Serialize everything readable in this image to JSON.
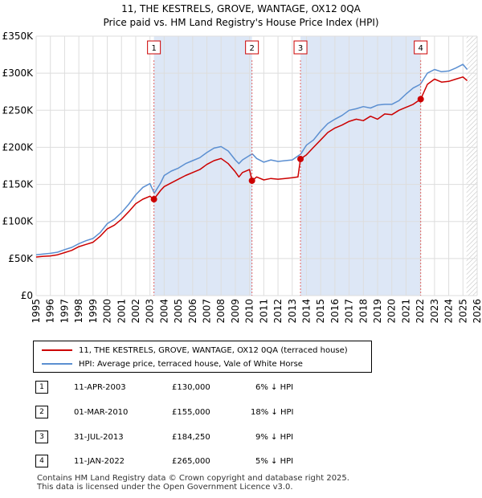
{
  "title_line1": "11, THE KESTRELS, GROVE, WANTAGE, OX12 0QA",
  "title_line2": "Price paid vs. HM Land Registry's House Price Index (HPI)",
  "colors": {
    "price": "#cc0000",
    "hpi": "#5b8fd1",
    "shade": "#dde7f6",
    "marker_line": "#e06666"
  },
  "chart_data": {
    "type": "line",
    "title": "11, THE KESTRELS, GROVE, WANTAGE, OX12 0QA — Price paid vs. HM Land Registry's House Price Index (HPI)",
    "xlabel": "",
    "ylabel": "",
    "xlim": [
      1995,
      2026
    ],
    "ylim": [
      0,
      350000
    ],
    "y_ticks": [
      0,
      50000,
      100000,
      150000,
      200000,
      250000,
      300000,
      350000
    ],
    "y_tick_labels": [
      "£0",
      "£50K",
      "£100K",
      "£150K",
      "£200K",
      "£250K",
      "£300K",
      "£350K"
    ],
    "x_ticks": [
      1995,
      1996,
      1997,
      1998,
      1999,
      2000,
      2001,
      2002,
      2003,
      2004,
      2005,
      2006,
      2007,
      2008,
      2009,
      2010,
      2011,
      2012,
      2013,
      2014,
      2015,
      2016,
      2017,
      2018,
      2019,
      2020,
      2021,
      2022,
      2023,
      2024,
      2025,
      2026
    ],
    "grid": true,
    "series": [
      {
        "name": "HPI: Average price, terraced house, Vale of White Horse",
        "x": [
          1995.0,
          1995.5,
          1996.0,
          1996.5,
          1997.0,
          1997.5,
          1998.0,
          1998.5,
          1999.0,
          1999.5,
          2000.0,
          2000.5,
          2001.0,
          2001.5,
          2002.0,
          2002.5,
          2003.0,
          2003.3,
          2003.75,
          2004.0,
          2004.5,
          2005.0,
          2005.5,
          2006.0,
          2006.5,
          2007.0,
          2007.5,
          2008.0,
          2008.5,
          2009.0,
          2009.25,
          2009.5,
          2010.0,
          2010.2,
          2010.5,
          2011.0,
          2011.5,
          2012.0,
          2012.5,
          2013.0,
          2013.6,
          2014.0,
          2014.5,
          2015.0,
          2015.5,
          2016.0,
          2016.5,
          2017.0,
          2017.5,
          2018.0,
          2018.5,
          2019.0,
          2019.5,
          2020.0,
          2020.5,
          2021.0,
          2021.5,
          2022.0,
          2022.5,
          2023.0,
          2023.5,
          2024.0,
          2024.5,
          2025.0,
          2025.3
        ],
        "values": [
          55000,
          56000,
          57000,
          58500,
          62000,
          65000,
          70000,
          74000,
          77000,
          85000,
          97000,
          103000,
          112000,
          123000,
          136000,
          146000,
          151000,
          138000,
          152000,
          162000,
          168000,
          172000,
          178000,
          182000,
          186000,
          193000,
          199000,
          201000,
          195000,
          183000,
          178000,
          183000,
          189000,
          191000,
          185000,
          180000,
          183000,
          181000,
          182000,
          183000,
          191000,
          203000,
          210000,
          222000,
          232000,
          238000,
          243000,
          250000,
          252000,
          255000,
          253000,
          257000,
          258000,
          258000,
          263000,
          272000,
          280000,
          285000,
          300000,
          305000,
          302000,
          303000,
          307000,
          312000,
          305000
        ]
      },
      {
        "name": "11, THE KESTRELS, GROVE, WANTAGE, OX12 0QA (terraced house)",
        "x": [
          1995.0,
          1995.5,
          1996.0,
          1996.5,
          1997.0,
          1997.5,
          1998.0,
          1998.5,
          1999.0,
          1999.5,
          2000.0,
          2000.5,
          2001.0,
          2001.5,
          2002.0,
          2002.5,
          2003.0,
          2003.28,
          2003.75,
          2004.0,
          2004.5,
          2005.0,
          2005.5,
          2006.0,
          2006.5,
          2007.0,
          2007.5,
          2008.0,
          2008.5,
          2009.0,
          2009.25,
          2009.5,
          2010.0,
          2010.17,
          2010.5,
          2011.0,
          2011.5,
          2012.0,
          2012.5,
          2013.0,
          2013.4,
          2013.58,
          2014.0,
          2014.5,
          2015.0,
          2015.5,
          2016.0,
          2016.5,
          2017.0,
          2017.5,
          2018.0,
          2018.5,
          2019.0,
          2019.5,
          2020.0,
          2020.5,
          2021.0,
          2021.5,
          2022.03,
          2022.5,
          2023.0,
          2023.5,
          2024.0,
          2024.5,
          2025.0,
          2025.3
        ],
        "values": [
          52000,
          53000,
          53500,
          55000,
          58000,
          61000,
          66000,
          69000,
          72000,
          80000,
          90000,
          95000,
          103000,
          113000,
          124000,
          130000,
          134000,
          130000,
          142000,
          147000,
          152000,
          157000,
          162000,
          166000,
          170000,
          177000,
          182000,
          185000,
          178000,
          167000,
          160000,
          166000,
          170000,
          155000,
          160000,
          156000,
          158000,
          157000,
          158000,
          159000,
          160000,
          184250,
          190000,
          200000,
          210000,
          220000,
          226000,
          230000,
          235000,
          238000,
          236000,
          242000,
          238000,
          245000,
          244000,
          250000,
          254000,
          258000,
          265000,
          285000,
          292000,
          288000,
          289000,
          292000,
          295000,
          290000
        ]
      }
    ],
    "sales": [
      {
        "label": "1",
        "x": 2003.28,
        "price": 130000
      },
      {
        "label": "2",
        "x": 2010.17,
        "price": 155000
      },
      {
        "label": "3",
        "x": 2013.58,
        "price": 184250
      },
      {
        "label": "4",
        "x": 2022.03,
        "price": 265000
      }
    ],
    "shaded_ranges": [
      [
        2003.28,
        2010.17
      ],
      [
        2013.58,
        2022.03
      ]
    ],
    "hatched_from": 2025.25,
    "legend_position": "below"
  },
  "legend": {
    "price_label": "11, THE KESTRELS, GROVE, WANTAGE, OX12 0QA (terraced house)",
    "hpi_label": "HPI: Average price, terraced house, Vale of White Horse"
  },
  "transactions": [
    {
      "num": "1",
      "date": "11-APR-2003",
      "price": "£130,000",
      "hpi": "6% ↓ HPI"
    },
    {
      "num": "2",
      "date": "01-MAR-2010",
      "price": "£155,000",
      "hpi": "18% ↓ HPI"
    },
    {
      "num": "3",
      "date": "31-JUL-2013",
      "price": "£184,250",
      "hpi": "9% ↓ HPI"
    },
    {
      "num": "4",
      "date": "11-JAN-2022",
      "price": "£265,000",
      "hpi": "5% ↓ HPI"
    }
  ],
  "footer_line1": "Contains HM Land Registry data © Crown copyright and database right 2025.",
  "footer_line2": "This data is licensed under the Open Government Licence v3.0."
}
